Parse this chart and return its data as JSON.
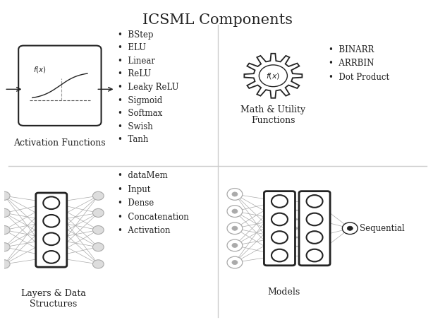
{
  "title": "ICSML Components",
  "bg_color": "#ffffff",
  "activation_label": "Activation Functions",
  "activation_items": [
    "BStep",
    "ELU",
    "Linear",
    "ReLU",
    "Leaky ReLU",
    "Sigmoid",
    "Softmax",
    "Swish",
    "Tanh"
  ],
  "math_label": "Math & Utility\nFunctions",
  "math_items": [
    "BINARR",
    "ARRBIN",
    "Dot Product"
  ],
  "layers_label": "Layers & Data\nStructures",
  "layers_items": [
    "dataMem",
    "Input",
    "Dense",
    "Concatenation",
    "Activation"
  ],
  "models_label": "Models",
  "models_items": [
    "Sequential"
  ],
  "line_color": "#aaaaaa",
  "dark_color": "#222222",
  "node_color": "#ffffff",
  "node_edge_color": "#444444"
}
